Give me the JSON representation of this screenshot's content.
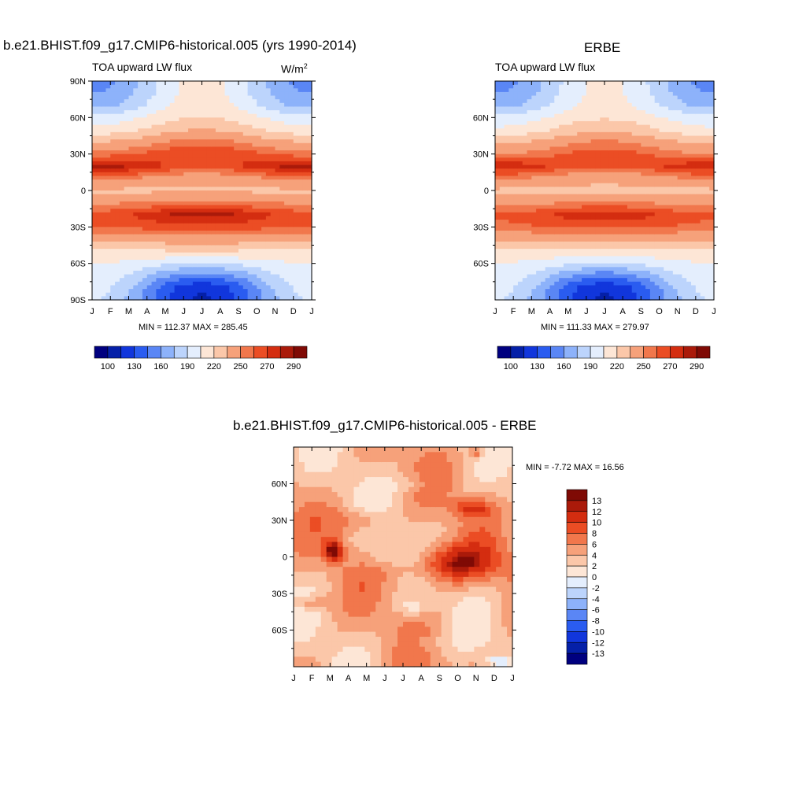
{
  "palette": [
    "#00007f",
    "#0520a8",
    "#1136dc",
    "#2a5cf0",
    "#5a86f5",
    "#8db2fa",
    "#bcd4fc",
    "#e4eefd",
    "#fde6d6",
    "#fbc7a9",
    "#f6a17a",
    "#f1774c",
    "#eb4d24",
    "#d42d10",
    "#aa1a0a",
    "#7f0a05"
  ],
  "months": [
    "J",
    "F",
    "M",
    "A",
    "M",
    "J",
    "J",
    "A",
    "S",
    "O",
    "N",
    "D",
    "J"
  ],
  "panels": [
    {
      "title": "b.e21.BHIST.f09_g17.CMIP6-historical.005 (yrs 1990-2014)",
      "subtitle": "TOA upward LW flux",
      "units_base": "W/m",
      "units_exp": "2",
      "stats": "MIN = 112.37 MAX = 285.45"
    },
    {
      "title": "ERBE",
      "subtitle": "TOA upward LW flux",
      "stats": "MIN = 111.33 MAX = 279.97"
    },
    {
      "title": "b.e21.BHIST.f09_g17.CMIP6-historical.005 - ERBE",
      "stats": "MIN =  -7.72 MAX =  16.56"
    }
  ],
  "chart_data": [
    {
      "type": "heatmap",
      "title": "b.e21.BHIST.f09_g17.CMIP6-historical.005 (yrs 1990-2014)",
      "subtitle": "TOA upward LW flux",
      "units": "W/m2",
      "x": [
        "J",
        "F",
        "M",
        "A",
        "M",
        "J",
        "J",
        "A",
        "S",
        "O",
        "N",
        "D",
        "J"
      ],
      "y_ticks": [
        "90N",
        "60N",
        "30N",
        "0",
        "30S",
        "60S",
        "90S"
      ],
      "ylim": [
        -90,
        90
      ],
      "min": 112.37,
      "max": 285.45,
      "colorbar_labels": [
        "100",
        "130",
        "160",
        "190",
        "220",
        "250",
        "270",
        "290"
      ],
      "levels": [
        100,
        115,
        130,
        145,
        160,
        175,
        190,
        205,
        220,
        235,
        250,
        260,
        270,
        280,
        290
      ],
      "zonal_profile": {
        "lat": [
          -90,
          -80,
          -70,
          -60,
          -50,
          -40,
          -30,
          -20,
          -10,
          0,
          10,
          20,
          30,
          40,
          50,
          60,
          70,
          80,
          90
        ],
        "jan": [
          190,
          195,
          200,
          205,
          215,
          240,
          262,
          265,
          248,
          232,
          255,
          285,
          255,
          235,
          210,
          195,
          170,
          160,
          155
        ],
        "jul": [
          112,
          118,
          150,
          190,
          220,
          245,
          265,
          285,
          255,
          232,
          240,
          265,
          270,
          255,
          235,
          220,
          215,
          210,
          210
        ]
      }
    },
    {
      "type": "heatmap",
      "title": "ERBE",
      "subtitle": "TOA upward LW flux",
      "x": [
        "J",
        "F",
        "M",
        "A",
        "M",
        "J",
        "J",
        "A",
        "S",
        "O",
        "N",
        "D",
        "J"
      ],
      "y_ticks": [
        "60N",
        "30N",
        "0",
        "30S",
        "60S"
      ],
      "ylim": [
        -90,
        90
      ],
      "min": 111.33,
      "max": 279.97,
      "colorbar_labels": [
        "100",
        "130",
        "160",
        "190",
        "220",
        "250",
        "270",
        "290"
      ],
      "levels": [
        100,
        115,
        130,
        145,
        160,
        175,
        190,
        205,
        220,
        235,
        250,
        260,
        270,
        280,
        290
      ],
      "zonal_profile": {
        "lat": [
          -90,
          -80,
          -70,
          -60,
          -50,
          -40,
          -30,
          -20,
          -10,
          0,
          10,
          20,
          30,
          40,
          50,
          60,
          70,
          80,
          90
        ],
        "jan": [
          190,
          195,
          200,
          205,
          215,
          238,
          258,
          262,
          245,
          232,
          252,
          278,
          250,
          232,
          208,
          195,
          170,
          160,
          155
        ],
        "jul": [
          112,
          118,
          150,
          188,
          218,
          242,
          262,
          278,
          252,
          232,
          238,
          262,
          265,
          252,
          232,
          218,
          212,
          208,
          208
        ]
      }
    },
    {
      "type": "heatmap",
      "title": "b.e21.BHIST.f09_g17.CMIP6-historical.005 - ERBE",
      "x": [
        "J",
        "F",
        "M",
        "A",
        "M",
        "J",
        "J",
        "A",
        "S",
        "O",
        "N",
        "D",
        "J"
      ],
      "y_ticks": [
        "60N",
        "30N",
        "0",
        "30S",
        "60S"
      ],
      "ylim": [
        -90,
        90
      ],
      "min": -7.72,
      "max": 16.56,
      "colorbar_labels": [
        "13",
        "12",
        "10",
        "8",
        "6",
        "4",
        "2",
        "0",
        "-2",
        "-4",
        "-6",
        "-8",
        "-10",
        "-12",
        "-13"
      ],
      "levels": [
        -13,
        -12,
        -10,
        -8,
        -6,
        -4,
        -2,
        0,
        2,
        4,
        6,
        8,
        10,
        12,
        13
      ]
    }
  ]
}
